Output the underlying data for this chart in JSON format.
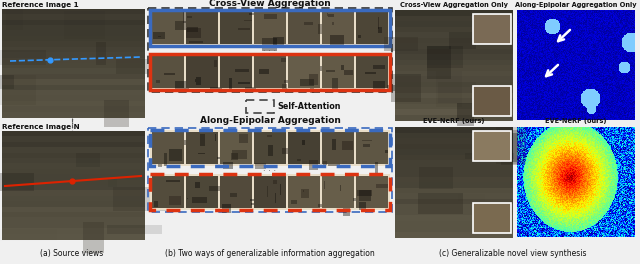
{
  "figure_width": 6.4,
  "figure_height": 2.64,
  "dpi": 100,
  "bg_color": "#f0f0f0",
  "caption_a": "(a) Source views",
  "caption_b": "(b) Two ways of generalizable information aggregation",
  "caption_c": "(c) Generalizable novel view synthesis",
  "title_cross_view": "Cross-View Aggregation",
  "title_along_epipolar": "Along-Epipolar Aggregation",
  "title_self_attention": "Self-Attention",
  "label_ref1": "Reference Image 1",
  "label_refN": "Reference Image N",
  "label_cross_only": "Cross-View Aggregation Only",
  "label_epipolar_only": "Along-Epipolar Aggregation Only",
  "label_eve_nerf1": "EVE-NeRF (ours)",
  "label_eve_nerf2": "EVE-NeRF (ours)",
  "blue_box_color": "#3a6abf",
  "red_box_color": "#dd3311",
  "dashed_box_color": "#444444",
  "photo_dark": "#3a3020",
  "photo_mid": "#6a5a40",
  "photo_light": "#9a8a6a"
}
